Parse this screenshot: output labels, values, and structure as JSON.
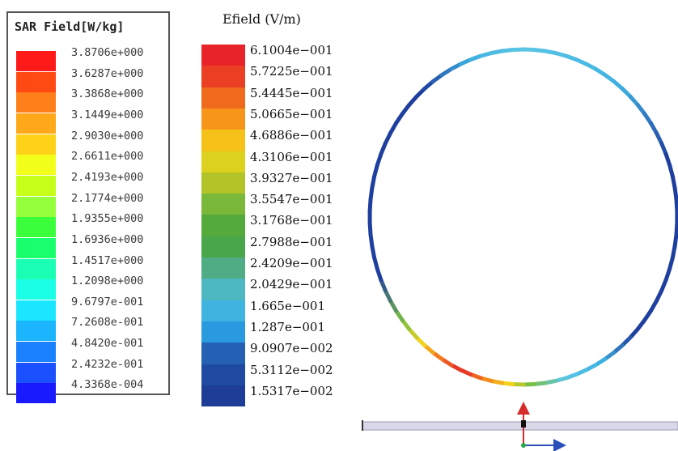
{
  "sar_legend": {
    "title": "SAR Field[W/kg]",
    "entries": [
      {
        "value": "3.8706e+000",
        "color": "#ff1a1a"
      },
      {
        "value": "3.6287e+000",
        "color": "#ff4a14"
      },
      {
        "value": "3.3868e+000",
        "color": "#ff7f1a"
      },
      {
        "value": "3.1449e+000",
        "color": "#ffa81a"
      },
      {
        "value": "2.9030e+000",
        "color": "#ffd21a"
      },
      {
        "value": "2.6611e+000",
        "color": "#f2ff1a"
      },
      {
        "value": "2.4193e+000",
        "color": "#c8ff1a"
      },
      {
        "value": "2.1774e+000",
        "color": "#96ff3c"
      },
      {
        "value": "1.9355e+000",
        "color": "#3cff3c"
      },
      {
        "value": "1.6936e+000",
        "color": "#1aff6e"
      },
      {
        "value": "1.4517e+000",
        "color": "#1affb4"
      },
      {
        "value": "1.2098e+000",
        "color": "#1affe6"
      },
      {
        "value": "9.6797e-001",
        "color": "#1ae6ff"
      },
      {
        "value": "7.2608e-001",
        "color": "#1ab4ff"
      },
      {
        "value": "4.8420e-001",
        "color": "#1a82ff"
      },
      {
        "value": "2.4232e-001",
        "color": "#1a50ff"
      },
      {
        "value": "4.3368e-004",
        "color": "#1a1aff"
      }
    ]
  },
  "efield_legend": {
    "title": "Efield (V/m)",
    "entries": [
      {
        "value": "6.1004e−001",
        "color": "#e8242a"
      },
      {
        "value": "5.7225e−001",
        "color": "#ea3f22"
      },
      {
        "value": "5.4445e−001",
        "color": "#f06a1c"
      },
      {
        "value": "5.0665e−001",
        "color": "#f7951a"
      },
      {
        "value": "4.6886e−001",
        "color": "#f6c21a"
      },
      {
        "value": "4.3106e−001",
        "color": "#dcd21e"
      },
      {
        "value": "3.9327e−001",
        "color": "#b2c428"
      },
      {
        "value": "3.5547e−001",
        "color": "#7ab83a"
      },
      {
        "value": "3.1768e−001",
        "color": "#55aa3c"
      },
      {
        "value": "2.7988e−001",
        "color": "#4aa64a"
      },
      {
        "value": "2.4209e−001",
        "color": "#4fac84"
      },
      {
        "value": "2.0429e−001",
        "color": "#4db8c2"
      },
      {
        "value": "1.665e−001",
        "color": "#3fb4e0"
      },
      {
        "value": "1.287e−001",
        "color": "#2a9ae0"
      },
      {
        "value": "9.0907e−002",
        "color": "#2461b4"
      },
      {
        "value": "5.3112e−002",
        "color": "#1f4aa2"
      },
      {
        "value": "1.5317e−002",
        "color": "#1e3d96"
      }
    ]
  },
  "ring_colors": {
    "dark_blue": "#1f3f9e",
    "light_blue": "#3fb0e0",
    "cyan": "#5cc6e6",
    "green": "#7bc043",
    "yellow": "#f2d21a",
    "orange": "#f47a1c",
    "red": "#e3262b"
  },
  "axis_colors": {
    "x_axis": "#2a4fb8",
    "y_axis": "#d62b2b",
    "origin": "#000000",
    "plane": "#d8d8e8"
  }
}
